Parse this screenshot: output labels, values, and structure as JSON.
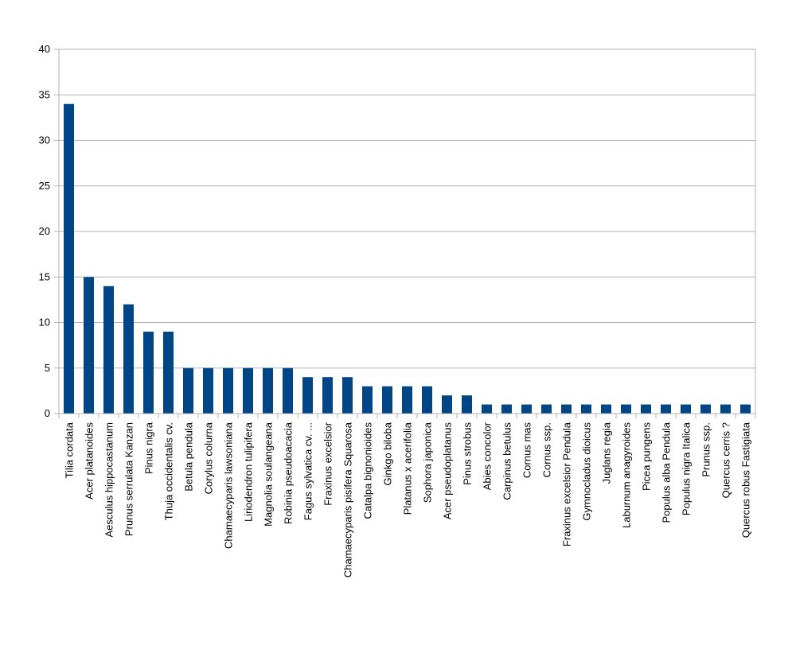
{
  "colors": {
    "bar": "#004586",
    "grid": "#b3b3b3",
    "axis": "#b3b3b3",
    "text": "#000000"
  },
  "chart_data": {
    "type": "bar",
    "title": "",
    "xlabel": "",
    "ylabel": "",
    "ylim": [
      0,
      40
    ],
    "yticks": [
      0,
      5,
      10,
      15,
      20,
      25,
      30,
      35,
      40
    ],
    "grid": true,
    "legend": "none",
    "categories": [
      "Tilia cordata",
      "Acer platanoides",
      "Aesculus hippocastanum",
      "Prunus serrulata Kanzan",
      "Pinus nigra",
      "Thuja occidentalis cv.",
      "Betula pendula",
      "Corylus colurna",
      "Chamaecyparis lawsoniana",
      "Liriodendron tulipifera",
      "Magnolia soulangeana",
      "Robinia pseudoacacia",
      "Fagus sylvatica cv. ...",
      "Fraxinus excelsior",
      "Chamaecyparis pisifera Squarosa",
      "Catalpa bignonioides",
      "Ginkgo biloba",
      "Platanus x acerifolia",
      "Sophora japonica",
      "Acer pseudoplatanus",
      "Pinus strobus",
      "Abies concolor",
      "Carpinus betulus",
      "Cornus mas",
      "Cornus ssp.",
      "Fraxinus excelsior Pendula",
      "Gymnocladus dioicus",
      "Juglans regia",
      "Laburnum anagyroides",
      "Picea pungens",
      "Populus alba Pendula",
      "Populus nigra Italica",
      "Prunus ssp.",
      "Quercus cerris ?",
      "Quercus robus Fastigiata"
    ],
    "values": [
      34,
      15,
      14,
      12,
      9,
      9,
      5,
      5,
      5,
      5,
      5,
      5,
      4,
      4,
      4,
      3,
      3,
      3,
      3,
      2,
      2,
      1,
      1,
      1,
      1,
      1,
      1,
      1,
      1,
      1,
      1,
      1,
      1,
      1,
      1
    ]
  }
}
